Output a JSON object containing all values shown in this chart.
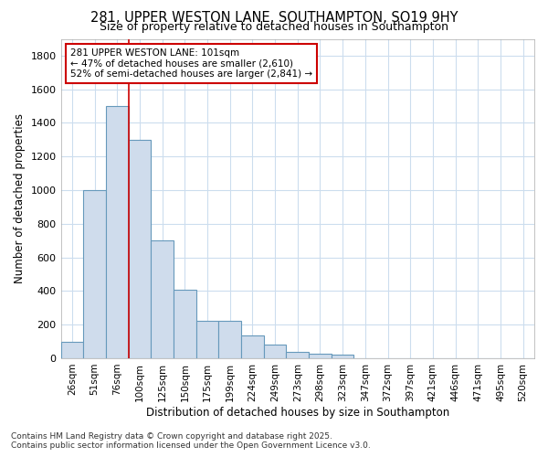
{
  "title": "281, UPPER WESTON LANE, SOUTHAMPTON, SO19 9HY",
  "subtitle": "Size of property relative to detached houses in Southampton",
  "xlabel": "Distribution of detached houses by size in Southampton",
  "ylabel": "Number of detached properties",
  "bar_color": "#cfdcec",
  "bar_edge_color": "#6699bb",
  "background_color": "#ffffff",
  "grid_color": "#ccddee",
  "annotation_box_color": "#cc0000",
  "annotation_text_line1": "281 UPPER WESTON LANE: 101sqm",
  "annotation_text_line2": "← 47% of detached houses are smaller (2,610)",
  "annotation_text_line3": "52% of semi-detached houses are larger (2,841) →",
  "categories": [
    "26sqm",
    "51sqm",
    "76sqm",
    "100sqm",
    "125sqm",
    "150sqm",
    "175sqm",
    "199sqm",
    "224sqm",
    "249sqm",
    "273sqm",
    "298sqm",
    "323sqm",
    "347sqm",
    "372sqm",
    "397sqm",
    "421sqm",
    "446sqm",
    "471sqm",
    "495sqm",
    "520sqm"
  ],
  "values": [
    100,
    1000,
    1500,
    1300,
    700,
    410,
    220,
    220,
    135,
    80,
    40,
    25,
    20,
    0,
    0,
    0,
    0,
    0,
    0,
    0,
    0
  ],
  "ylim": [
    0,
    1900
  ],
  "yticks": [
    0,
    200,
    400,
    600,
    800,
    1000,
    1200,
    1400,
    1600,
    1800
  ],
  "vline_x": 2.5,
  "footnote1": "Contains HM Land Registry data © Crown copyright and database right 2025.",
  "footnote2": "Contains public sector information licensed under the Open Government Licence v3.0."
}
